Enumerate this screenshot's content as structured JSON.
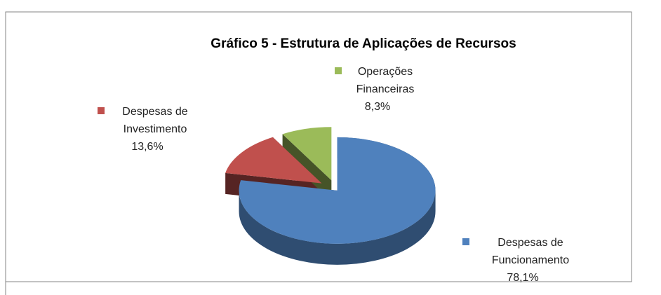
{
  "chart_data": {
    "type": "pie",
    "title": "Gráfico 5 - Estrutura de Aplicações  de Recursos",
    "categories": [
      "Despesas de Funcionamento",
      "Despesas de Investimento",
      "Operações Financeiras"
    ],
    "values": [
      78.1,
      13.6,
      8.3
    ],
    "value_labels": [
      "78,1%",
      "13,6%",
      "8,3%"
    ],
    "colors": [
      "#4f81bd",
      "#c0504d",
      "#9bbb59"
    ]
  }
}
